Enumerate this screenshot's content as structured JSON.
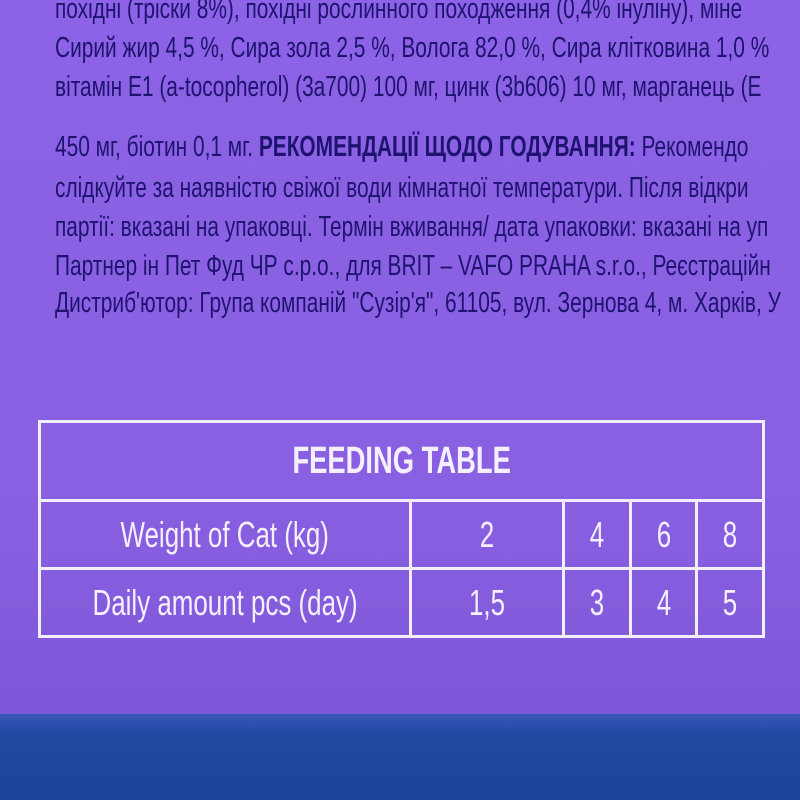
{
  "text_lines": [
    "похідні (тріски 8%), похідні рослинного походження (0,4% інуліну), міне",
    "Сирий жир 4,5 %, Сира зола 2,5 %, Волога 82,0 %, Сира клітковина 1,0 %",
    "вітамін E1 (a-tocopherol) (3a700) 100 мг, цинк (3b606) 10 мг, марганець (Е",
    "450 мг, біотин 0,1 мг.",
    "слідкуйте за наявністю свіжої води кімнатної температури. Після відкри",
    "партії: вказані на упаковці. Термін вживання/ дата упаковки: вказані на уп",
    "Партнер ін Пет Фуд ЧР с.р.о., для BRIT – VAFO PRAHA s.r.o., Реєстраційн",
    "Дистриб'ютор: Група компаній \"Сузір'я\", 61105, вул. Зернова 4, м. Харків, У"
  ],
  "line4_bold": "РЕКОМЕНДАЦІЇ ЩОДО ГОДУВАННЯ:",
  "line4_tail": "Рекомендо",
  "feeding_table": {
    "title": "FEEDING TABLE",
    "rows": [
      {
        "label": "Weight of Cat (kg)",
        "values": [
          "2",
          "4",
          "6",
          "8"
        ]
      },
      {
        "label": "Daily amount pcs (day)",
        "values": [
          "1,5",
          "3",
          "4",
          "5"
        ]
      }
    ]
  },
  "colors": {
    "background": "#8a60e2",
    "text": "#1e1470",
    "band": "#1f4aa0",
    "table": "#f2eefc"
  }
}
